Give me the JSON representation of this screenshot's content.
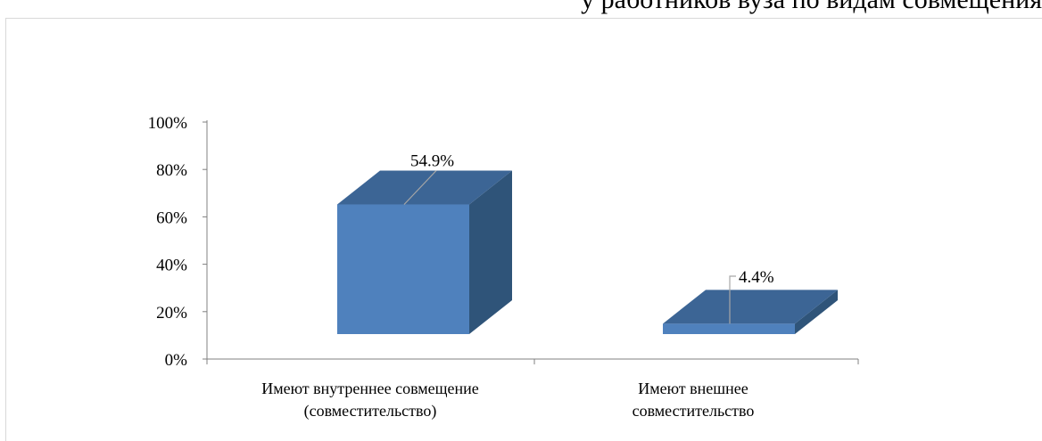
{
  "top_text_fragment": "у работников вуза по видам совмещения",
  "chart_data": {
    "type": "bar",
    "bar_style": "3d",
    "categories": [
      [
        "Имеют внутреннее совмещение",
        "(совместительство)"
      ],
      [
        "Имеют внешнее",
        "совместительство"
      ]
    ],
    "values": [
      54.9,
      4.4
    ],
    "data_labels": [
      "54.9%",
      "4.4%"
    ],
    "y_ticks": [
      "0%",
      "20%",
      "40%",
      "60%",
      "80%",
      "100%"
    ],
    "ylim": [
      0,
      100
    ],
    "grid": false,
    "legend": "none",
    "colors": {
      "front": "#4f81bd",
      "top": "#3c6595",
      "side": "#2f5479",
      "axis": "#808080",
      "leader": "#a6a6a6"
    }
  }
}
